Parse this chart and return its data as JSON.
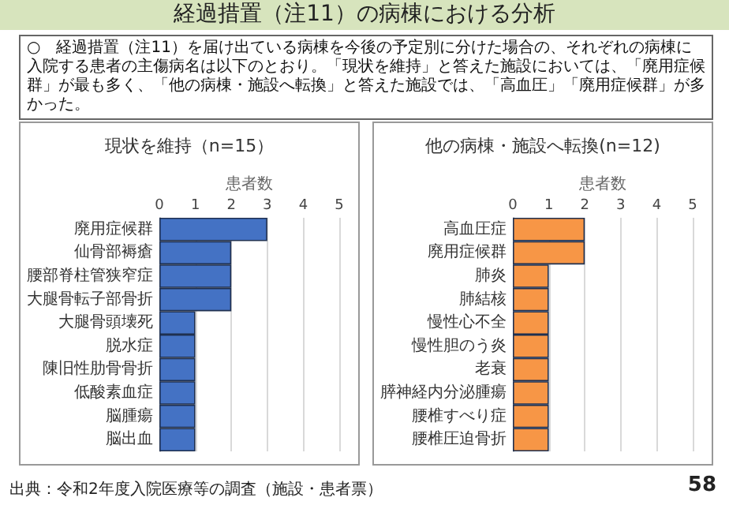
{
  "chart_data": [
    {
      "type": "bar",
      "title": "現状を維持（n=15）",
      "xlabel": "患者数",
      "orientation": "horizontal",
      "color": "#4472c4",
      "grid": "x",
      "xlim": [
        0,
        5
      ],
      "xticks": [
        0,
        1,
        2,
        3,
        4,
        5
      ],
      "categories": [
        "廃用症候群",
        "仙骨部褥瘡",
        "腰部脊柱管狭窄症",
        "大腿骨転子部骨折",
        "大腿骨頭壊死",
        "脱水症",
        "陳旧性肋骨骨折",
        "低酸素血症",
        "脳腫瘍",
        "脳出血"
      ],
      "values": [
        3,
        2,
        2,
        2,
        1,
        1,
        1,
        1,
        1,
        1
      ],
      "annotations": [
        "経過措置（注11）の病棟における分析",
        "○　経過措置（注11）を届け出ている病棟を今後の予定別に分けた場合の、それぞれの病棟に入院する患者の主傷病名は以下のとおり。「現状を維持」と答えた施設においては、「廃用症候群」が最も多く、「他の病棟・施設へ転換」と答えた施設では、「高血圧」「廃用症候群」が多かった。",
        "出典：令和2年度入院医療等の調査（施設・患者票）",
        "58"
      ]
    },
    {
      "type": "bar",
      "title": "他の病棟・施設へ転換(n=12)",
      "xlabel": "患者数",
      "orientation": "horizontal",
      "color": "#f79646",
      "grid": "x",
      "xlim": [
        0,
        5
      ],
      "xticks": [
        0,
        1,
        2,
        3,
        4,
        5
      ],
      "categories": [
        "高血圧症",
        "廃用症候群",
        "肺炎",
        "肺結核",
        "慢性心不全",
        "慢性胆のう炎",
        "老衰",
        "膵神経内分泌腫瘍",
        "腰椎すべり症",
        "腰椎圧迫骨折"
      ],
      "values": [
        2,
        2,
        1,
        1,
        1,
        1,
        1,
        1,
        1,
        1
      ]
    }
  ]
}
